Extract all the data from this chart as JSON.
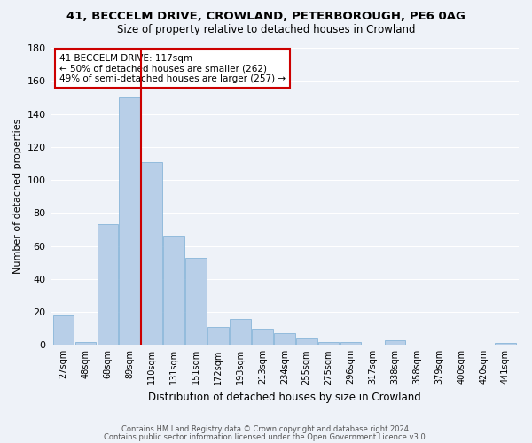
{
  "title1": "41, BECCELM DRIVE, CROWLAND, PETERBOROUGH, PE6 0AG",
  "title2": "Size of property relative to detached houses in Crowland",
  "xlabel": "Distribution of detached houses by size in Crowland",
  "ylabel": "Number of detached properties",
  "bin_labels": [
    "27sqm",
    "48sqm",
    "68sqm",
    "89sqm",
    "110sqm",
    "131sqm",
    "151sqm",
    "172sqm",
    "193sqm",
    "213sqm",
    "234sqm",
    "255sqm",
    "275sqm",
    "296sqm",
    "317sqm",
    "338sqm",
    "358sqm",
    "379sqm",
    "400sqm",
    "420sqm",
    "441sqm"
  ],
  "bar_values": [
    18,
    2,
    73,
    150,
    111,
    66,
    53,
    11,
    16,
    10,
    7,
    4,
    2,
    2,
    0,
    3,
    0,
    0,
    0,
    0,
    1
  ],
  "bar_color": "#b8cfe8",
  "bar_edge_color": "#7aadd4",
  "highlight_line_color": "#cc0000",
  "red_line_bar_index": 4,
  "annotation_text": "41 BECCELM DRIVE: 117sqm\n← 50% of detached houses are smaller (262)\n49% of semi-detached houses are larger (257) →",
  "annotation_box_color": "#ffffff",
  "annotation_box_edge": "#cc0000",
  "ylim": [
    0,
    180
  ],
  "yticks": [
    0,
    20,
    40,
    60,
    80,
    100,
    120,
    140,
    160,
    180
  ],
  "footer1": "Contains HM Land Registry data © Crown copyright and database right 2024.",
  "footer2": "Contains public sector information licensed under the Open Government Licence v3.0.",
  "background_color": "#eef2f8",
  "grid_color": "#ffffff"
}
